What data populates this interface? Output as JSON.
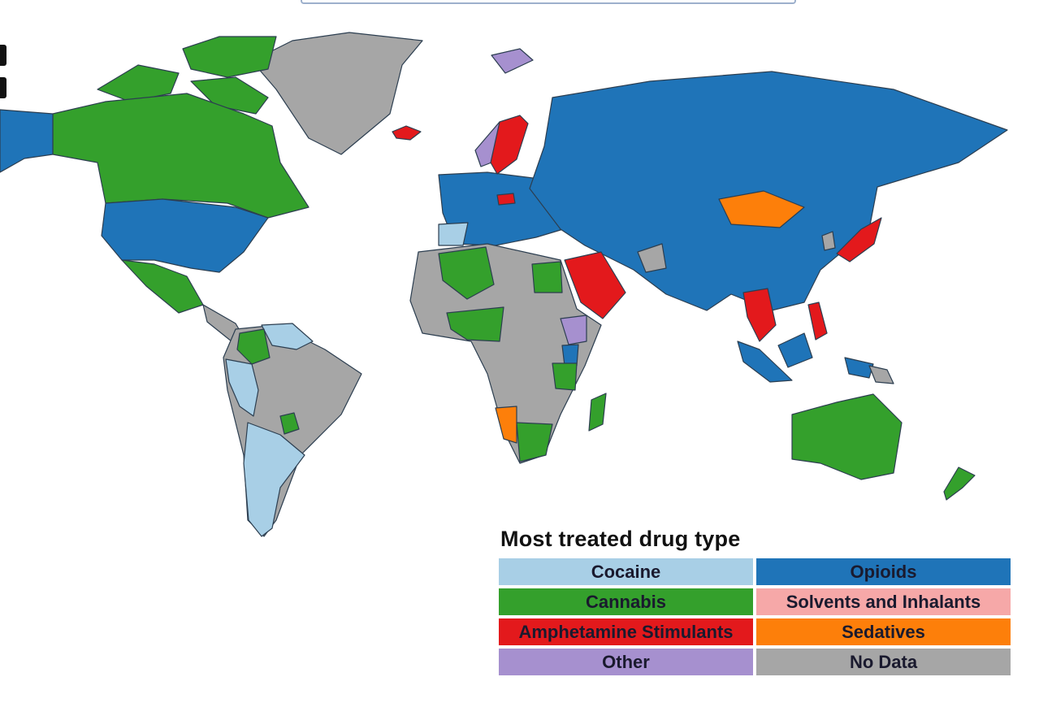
{
  "legend": {
    "title": "Most treated drug type",
    "items": [
      {
        "label": "Cocaine",
        "color": "#a8cfe6"
      },
      {
        "label": "Opioids",
        "color": "#1f74b8"
      },
      {
        "label": "Cannabis",
        "color": "#34a02c"
      },
      {
        "label": "Solvents and Inhalants",
        "color": "#f6a8a8"
      },
      {
        "label": "Amphetamine Stimulants",
        "color": "#e3191c"
      },
      {
        "label": "Sedatives",
        "color": "#fd7f0a"
      },
      {
        "label": "Other",
        "color": "#a690cf"
      },
      {
        "label": "No Data",
        "color": "#a6a6a6"
      }
    ]
  }
}
